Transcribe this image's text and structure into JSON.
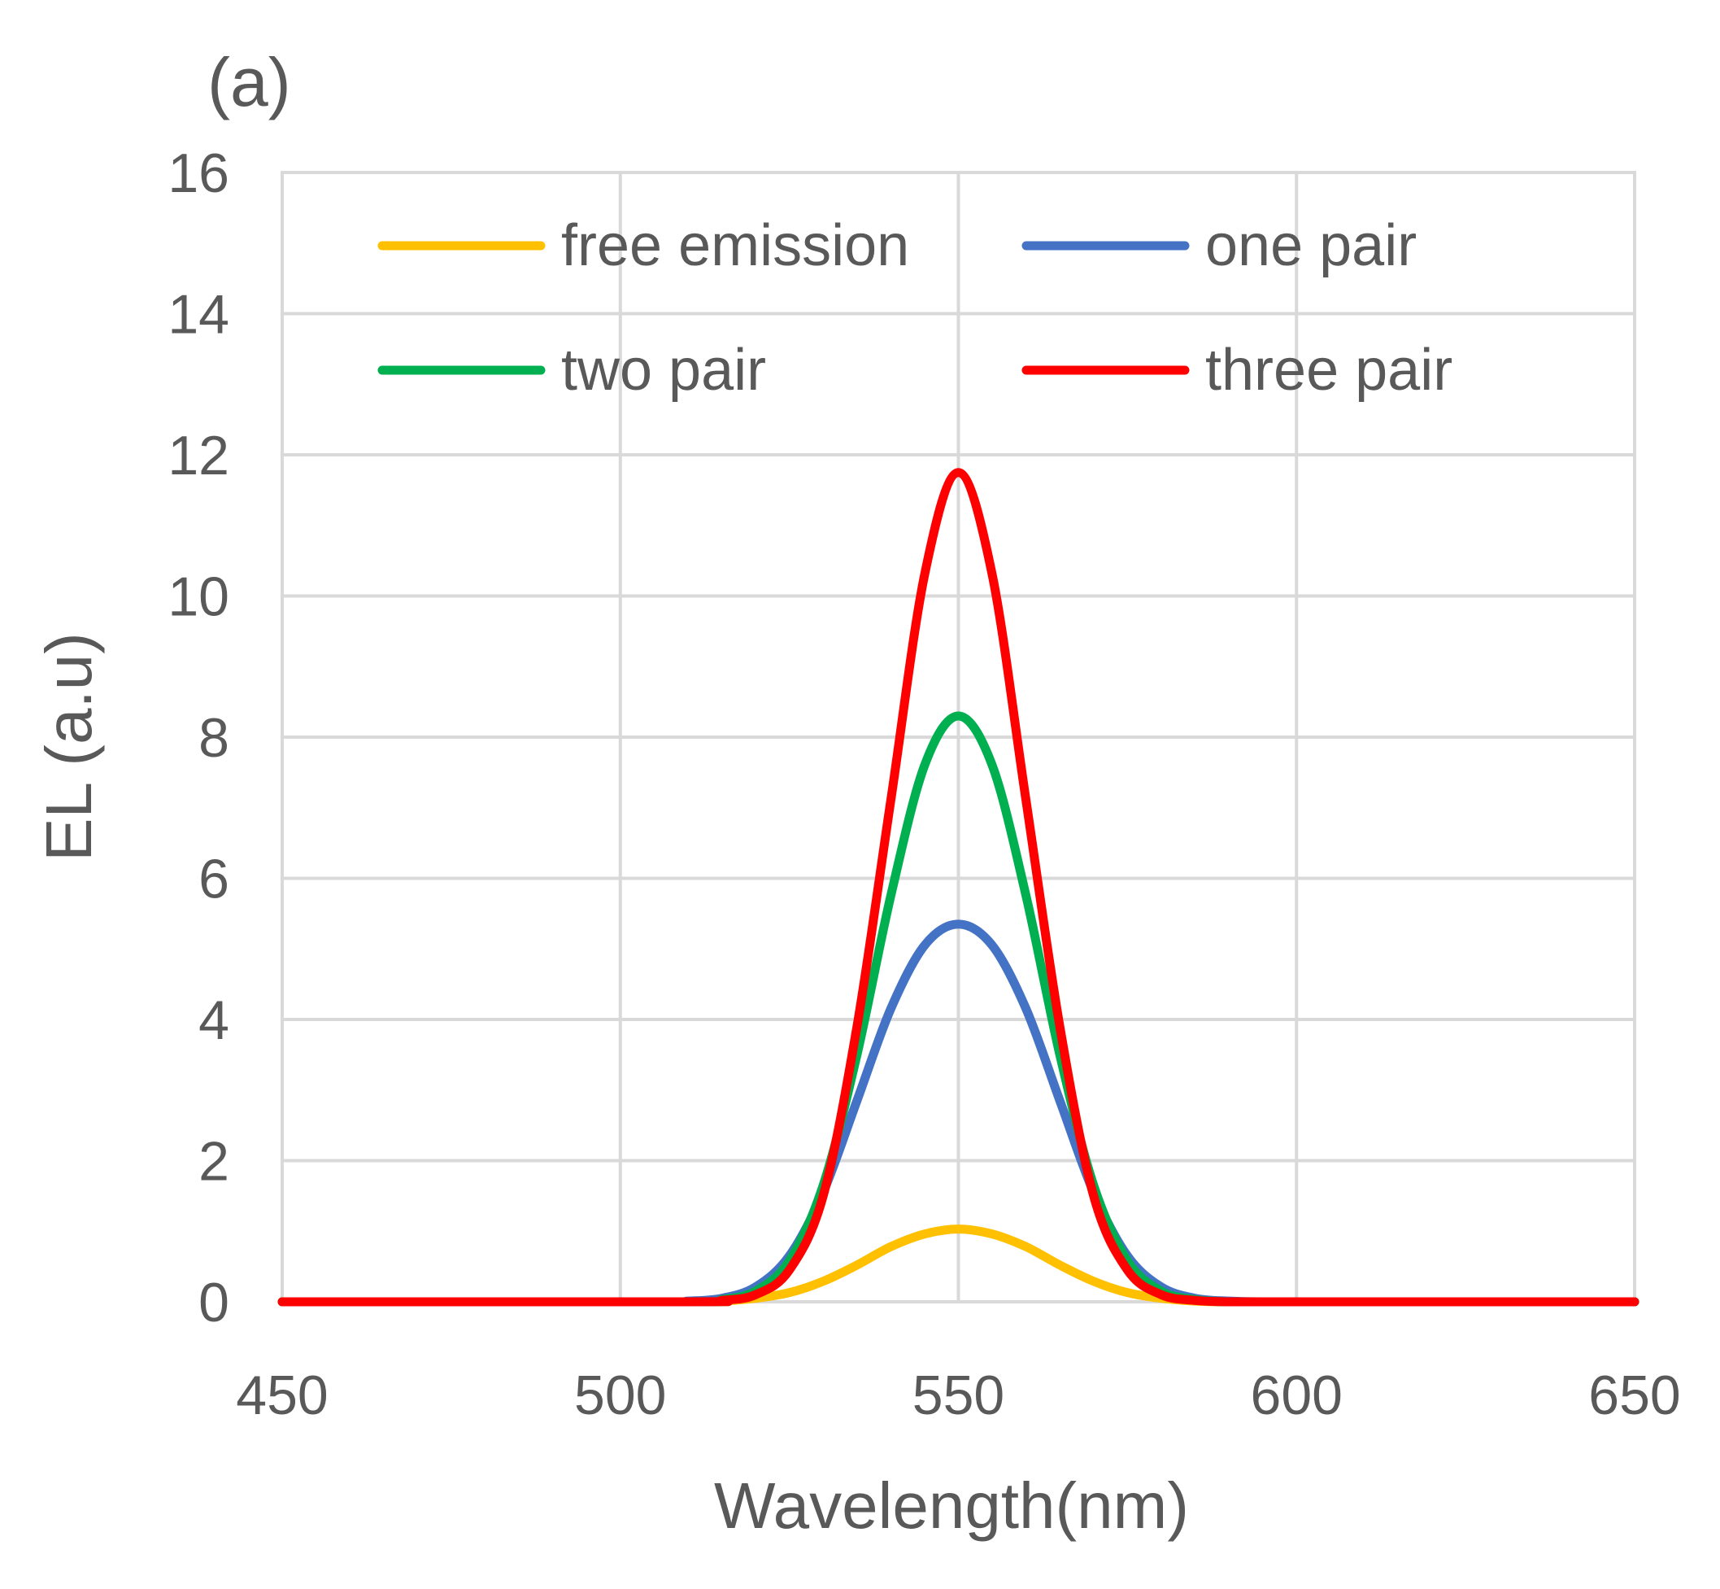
{
  "chart_data": {
    "type": "line",
    "panel_label": "(a)",
    "title": "",
    "xlabel": "Wavelength(nm)",
    "ylabel": "EL (a.u)",
    "xlim": [
      450,
      650
    ],
    "ylim": [
      0,
      16
    ],
    "xticks": [
      450,
      500,
      550,
      600,
      650
    ],
    "yticks": [
      0,
      2,
      4,
      6,
      8,
      10,
      12,
      14,
      16
    ],
    "grid": true,
    "legend_position": "top",
    "series": [
      {
        "name": "free emission",
        "color": "#FFC000",
        "x": [
          450,
          510,
          515,
          520,
          525,
          530,
          535,
          540,
          545,
          550,
          555,
          560,
          565,
          570,
          575,
          580,
          585,
          590,
          600,
          650
        ],
        "values": [
          0,
          0,
          0.01,
          0.05,
          0.13,
          0.29,
          0.52,
          0.78,
          0.96,
          1.03,
          0.96,
          0.78,
          0.52,
          0.29,
          0.13,
          0.05,
          0.01,
          0,
          0,
          0
        ]
      },
      {
        "name": "one pair",
        "color": "#4472C4",
        "x": [
          450,
          505,
          510,
          515,
          520,
          525,
          530,
          535,
          540,
          545,
          550,
          555,
          560,
          565,
          570,
          575,
          580,
          585,
          590,
          595,
          600,
          650
        ],
        "values": [
          0,
          0,
          0.01,
          0.05,
          0.21,
          0.65,
          1.55,
          2.85,
          4.15,
          5.05,
          5.35,
          5.05,
          4.15,
          2.85,
          1.55,
          0.65,
          0.21,
          0.05,
          0.01,
          0,
          0,
          0
        ]
      },
      {
        "name": "two pair",
        "color": "#00B050",
        "x": [
          450,
          510,
          515,
          520,
          525,
          530,
          535,
          540,
          545,
          550,
          555,
          560,
          565,
          570,
          575,
          580,
          585,
          590,
          595,
          600,
          650
        ],
        "values": [
          0,
          0,
          0.03,
          0.15,
          0.58,
          1.65,
          3.5,
          5.75,
          7.6,
          8.3,
          7.6,
          5.75,
          3.5,
          1.65,
          0.58,
          0.15,
          0.03,
          0,
          0,
          0,
          0
        ]
      },
      {
        "name": "three pair",
        "color": "#FF0000",
        "x": [
          450,
          510,
          515,
          520,
          525,
          530,
          535,
          540,
          545,
          550,
          555,
          560,
          565,
          570,
          575,
          580,
          585,
          590,
          595,
          600,
          650
        ],
        "values": [
          0,
          0,
          0.02,
          0.1,
          0.45,
          1.5,
          3.9,
          7.1,
          10.3,
          11.75,
          10.3,
          7.1,
          3.9,
          1.5,
          0.45,
          0.1,
          0.02,
          0,
          0,
          0,
          0
        ]
      }
    ]
  }
}
